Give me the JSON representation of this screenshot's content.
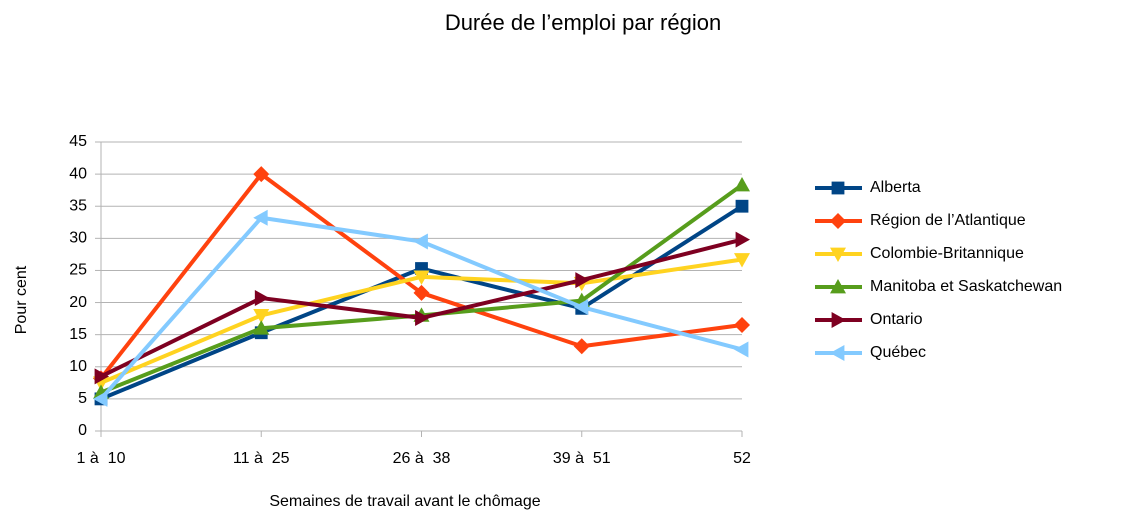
{
  "chart_data": {
    "type": "line",
    "title": "Durée de l’emploi par région",
    "x_label": "Semaines de travail avant le chômage",
    "y_label": "Pour cent",
    "categories": [
      "1 à  10",
      "11 à  25",
      "26 à  38",
      "39 à  51",
      "52"
    ],
    "ylim": [
      0,
      45
    ],
    "yticks": [
      0,
      5,
      10,
      15,
      20,
      25,
      30,
      35,
      40,
      45
    ],
    "grid": true,
    "legend": "right",
    "series": [
      {
        "name": "Alberta",
        "color": "#004586",
        "marker": "square",
        "values": [
          5,
          15.3,
          25.3,
          19.1,
          35
        ]
      },
      {
        "name": "Région de l’Atlantique",
        "color": "#ff420e",
        "marker": "diamond",
        "values": [
          8.2,
          40,
          21.5,
          13.2,
          16.5
        ]
      },
      {
        "name": "Colombie-Britannique",
        "color": "#ffd320",
        "marker": "triangle-down",
        "values": [
          7.5,
          18,
          24,
          23,
          26.7
        ]
      },
      {
        "name": "Manitoba et Saskatchewan",
        "color": "#579d1c",
        "marker": "triangle-up",
        "values": [
          6,
          16,
          18,
          20.3,
          38.3
        ]
      },
      {
        "name": "Ontario",
        "color": "#7e0021",
        "marker": "triangle-right",
        "values": [
          8.5,
          20.7,
          17.6,
          23.5,
          29.8
        ]
      },
      {
        "name": "Québec",
        "color": "#83caff",
        "marker": "triangle-left",
        "values": [
          5,
          33.2,
          29.5,
          19.3,
          12.7
        ]
      }
    ]
  }
}
